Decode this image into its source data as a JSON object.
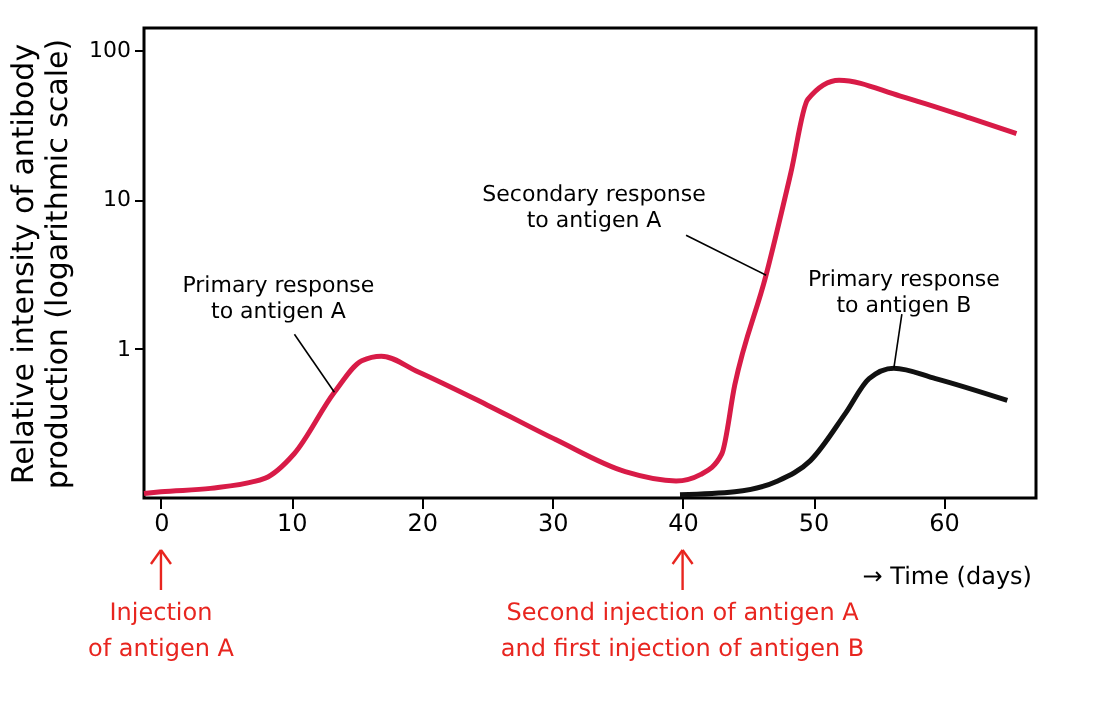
{
  "chart_data": {
    "type": "line",
    "xlabel": "→  Time (days)",
    "ylabel": "Relative intensity of antibody\nproduction (logarithmic scale)",
    "log": "y",
    "grid": false,
    "marker": "none",
    "line_style": "solid",
    "xlim": [
      -1.3,
      67.1
    ],
    "xticks": [
      0,
      10,
      20,
      30,
      40,
      50,
      60
    ],
    "ylim": [
      0.1,
      140
    ],
    "yticks": [
      1,
      10,
      100
    ],
    "series": [
      {
        "color": "#d81b47",
        "x": [
          -1.3,
          0,
          3.8,
          8,
          10.2,
          13.3,
          15.4,
          16.9,
          19.7,
          25,
          30.3,
          35.6,
          39.5,
          41.4,
          43,
          44,
          46.4,
          48.3,
          49.6,
          52,
          56.7,
          62,
          65.6
        ],
        "values": [
          0.107,
          0.11,
          0.116,
          0.136,
          0.197,
          0.51,
          0.83,
          0.89,
          0.7,
          0.42,
          0.245,
          0.15,
          0.13,
          0.144,
          0.197,
          0.57,
          3.1,
          15,
          46.6,
          62.6,
          49,
          35,
          27.5
        ]
      },
      {
        "color": "#111111",
        "x": [
          39.8,
          44,
          47.2,
          49.8,
          52.5,
          54.3,
          56.2,
          59.4,
          64.9
        ],
        "values": [
          0.105,
          0.11,
          0.129,
          0.178,
          0.37,
          0.63,
          0.74,
          0.63,
          0.45
        ]
      }
    ],
    "annotations": [
      {
        "text": "Primary response\nto antigen A",
        "x": 13.3,
        "y": 0.51
      },
      {
        "text": "Secondary response\nto antigen A",
        "x": 46.4,
        "y": 3.1
      },
      {
        "text": "Primary response\nto antigen B",
        "x": 56.2,
        "y": 0.74
      },
      {
        "text": "Injection\nof antigen A",
        "x": 0
      },
      {
        "text": "Second injection of antigen A\nand first injection of antigen B",
        "x": 40
      }
    ]
  }
}
